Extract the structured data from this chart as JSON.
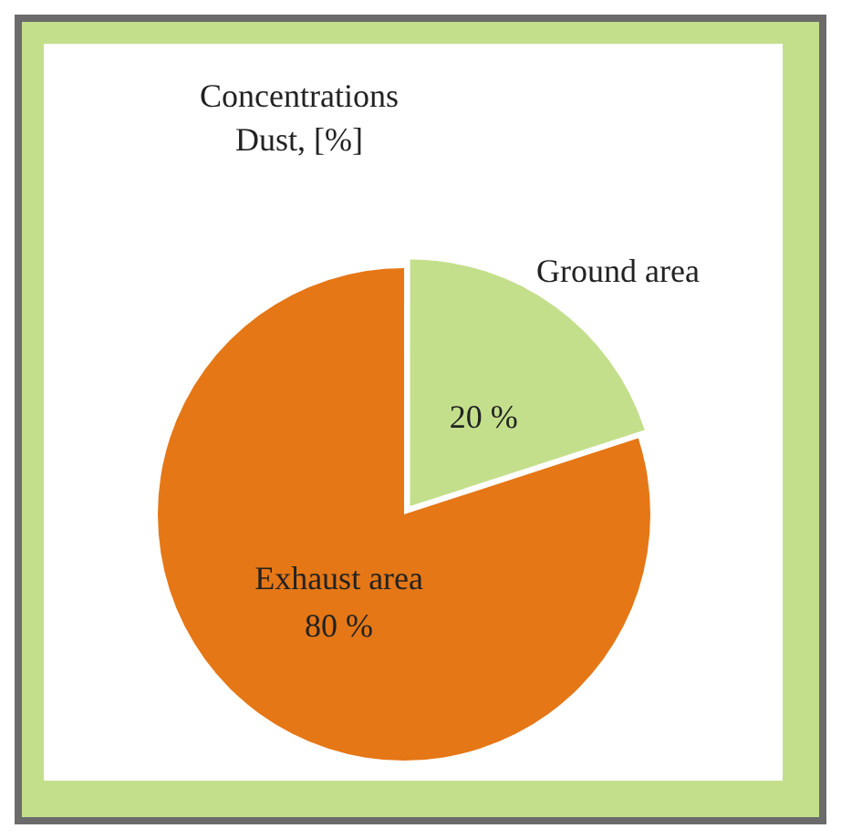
{
  "chart_data": {
    "type": "pie",
    "title": "Concentrations\nDust, [%]",
    "categories": [
      "Ground area",
      "Exhaust area"
    ],
    "values": [
      20,
      80
    ],
    "value_labels": [
      "20 %",
      "80 %"
    ],
    "colors": [
      "#c4df8c",
      "#e57716"
    ],
    "legend": false
  }
}
